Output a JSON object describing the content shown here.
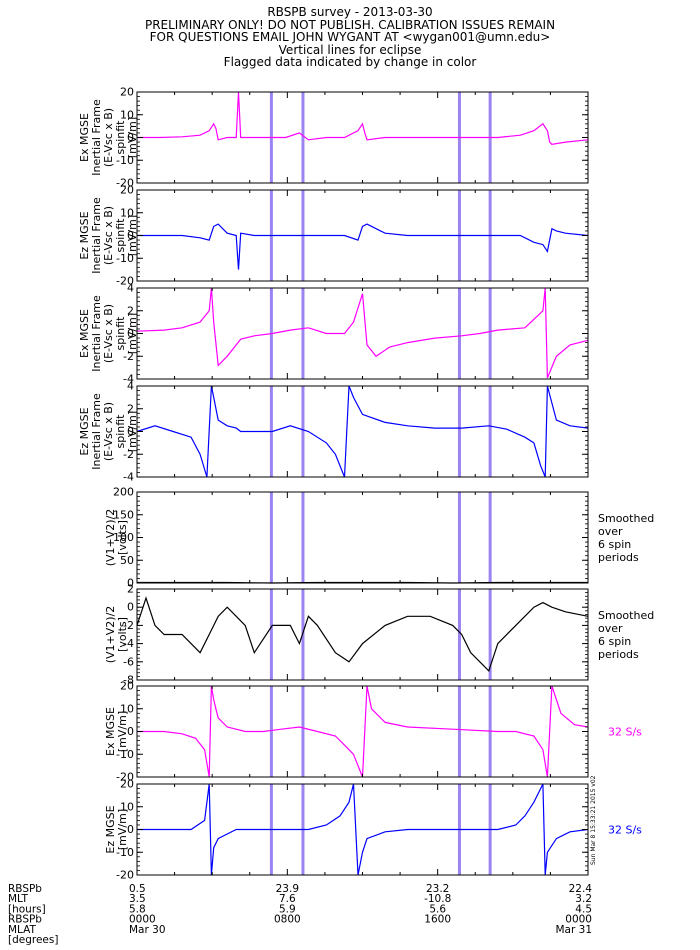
{
  "header": {
    "line1": "RBSPB survey - 2013-03-30",
    "line2": "PRELIMINARY ONLY! DO NOT PUBLISH. CALIBRATION ISSUES REMAIN",
    "line3": "FOR QUESTIONS EMAIL JOHN WYGANT AT <wygan001@umn.edu>",
    "line4": "Vertical lines for eclipse",
    "line5": "Flagged data indicated by change in color"
  },
  "colors": {
    "magenta": "#ff00ff",
    "blue": "#0000ff",
    "black": "#000000",
    "eclipse": "#8a6ff0"
  },
  "eclipse_x_fractions_of_day": [
    0.298,
    0.368,
    0.715,
    0.783
  ],
  "chart_data": [
    {
      "type": "line",
      "ylabel": [
        "Ex MGSE",
        "Inertial Frame",
        "(E-Vsc x B)",
        "spinfit",
        "[mV/m]"
      ],
      "ylim": [
        -20,
        20
      ],
      "yticks": [
        20,
        10,
        0,
        -10,
        -20
      ],
      "color": "magenta",
      "right_label": [],
      "series": [
        {
          "x": [
            0,
            0.05,
            0.1,
            0.14,
            0.16,
            0.17,
            0.175,
            0.18,
            0.2,
            0.22,
            0.225,
            0.23,
            0.26,
            0.3,
            0.33,
            0.36,
            0.38,
            0.42,
            0.46,
            0.49,
            0.5,
            0.505,
            0.51,
            0.55,
            0.6,
            0.65,
            0.7,
            0.75,
            0.8,
            0.85,
            0.88,
            0.9,
            0.91,
            0.915,
            0.92,
            0.95,
            1.0
          ],
          "y": [
            0,
            0,
            0.3,
            1,
            3,
            6,
            4,
            -1,
            0,
            0,
            20,
            0,
            0,
            0,
            0,
            2,
            -1,
            0,
            0,
            3,
            6,
            2,
            -1,
            0,
            0,
            0,
            0,
            0,
            0,
            1,
            3,
            6,
            3,
            -2,
            -3,
            -2,
            -1
          ]
        }
      ]
    },
    {
      "type": "line",
      "ylabel": [
        "Ez MGSE",
        "Inertial Frame",
        "(E-Vsc x B)",
        "spinfit",
        "[mV/m]"
      ],
      "ylim": [
        -20,
        20
      ],
      "yticks": [
        20,
        10,
        0,
        -10,
        -20
      ],
      "color": "blue",
      "right_label": [],
      "series": [
        {
          "x": [
            0,
            0.05,
            0.1,
            0.14,
            0.16,
            0.17,
            0.18,
            0.2,
            0.22,
            0.225,
            0.23,
            0.26,
            0.3,
            0.33,
            0.36,
            0.38,
            0.42,
            0.46,
            0.49,
            0.5,
            0.51,
            0.55,
            0.6,
            0.7,
            0.8,
            0.85,
            0.88,
            0.9,
            0.91,
            0.92,
            0.93,
            0.95,
            1.0
          ],
          "y": [
            0,
            0,
            0,
            -1,
            -2,
            4,
            5,
            1,
            0,
            -15,
            1,
            0,
            0,
            0,
            0,
            0,
            0,
            0,
            -2,
            4,
            5,
            1,
            0,
            0,
            0,
            0,
            -3,
            -4,
            -7,
            3,
            2,
            1,
            0
          ]
        }
      ]
    },
    {
      "type": "line",
      "ylabel": [
        "Ex MGSE",
        "Inertial Frame",
        "(E-Vsc x B)",
        "spinfit",
        "[mV/m]"
      ],
      "ylim": [
        -4,
        4
      ],
      "yticks": [
        4,
        2,
        0,
        -2,
        -4
      ],
      "color": "magenta",
      "right_label": [],
      "series": [
        {
          "x": [
            0,
            0.06,
            0.1,
            0.14,
            0.16,
            0.165,
            0.17,
            0.18,
            0.2,
            0.22,
            0.23,
            0.26,
            0.3,
            0.34,
            0.38,
            0.42,
            0.46,
            0.48,
            0.5,
            0.51,
            0.53,
            0.56,
            0.6,
            0.66,
            0.72,
            0.76,
            0.8,
            0.86,
            0.9,
            0.905,
            0.91,
            0.93,
            0.96,
            1.0
          ],
          "y": [
            0.2,
            0.3,
            0.5,
            1,
            2,
            4,
            1,
            -2.8,
            -2,
            -1,
            -0.5,
            -0.2,
            0,
            0.3,
            0.5,
            0,
            0,
            1,
            3.5,
            -1,
            -2,
            -1.2,
            -0.8,
            -0.4,
            -0.2,
            0,
            0.3,
            0.5,
            2,
            4,
            -3.9,
            -2,
            -1,
            -0.6
          ]
        }
      ]
    },
    {
      "type": "line",
      "ylabel": [
        "Ez MGSE",
        "Inertial Frame",
        "(E-Vsc x B)",
        "spinfit",
        "[mV/m]"
      ],
      "ylim": [
        -4,
        4
      ],
      "yticks": [
        4,
        2,
        0,
        -2,
        -4
      ],
      "color": "blue",
      "right_label": [],
      "series": [
        {
          "x": [
            0,
            0.04,
            0.08,
            0.12,
            0.14,
            0.155,
            0.165,
            0.17,
            0.18,
            0.2,
            0.22,
            0.23,
            0.26,
            0.3,
            0.34,
            0.38,
            0.42,
            0.44,
            0.46,
            0.47,
            0.48,
            0.5,
            0.55,
            0.6,
            0.66,
            0.72,
            0.78,
            0.82,
            0.86,
            0.88,
            0.895,
            0.905,
            0.91,
            0.93,
            0.96,
            1.0
          ],
          "y": [
            0,
            0.5,
            0,
            -0.5,
            -2,
            -4,
            4,
            3,
            1,
            0.5,
            0.3,
            0,
            0,
            0,
            0.5,
            0,
            -1,
            -2,
            -4,
            4,
            3,
            1.5,
            0.8,
            0.5,
            0.3,
            0.3,
            0.5,
            0.2,
            -0.5,
            -1,
            -3,
            -4,
            4,
            1,
            0.5,
            0.3
          ]
        }
      ]
    },
    {
      "type": "line",
      "ylabel": [
        "(V1+V2)/2",
        "[volts]"
      ],
      "ylim": [
        0,
        200
      ],
      "yticks": [
        200,
        150,
        100,
        50,
        0
      ],
      "color": "black",
      "right_label": [
        "Smoothed",
        "over",
        "6 spin",
        "periods"
      ],
      "series": [
        {
          "x": [
            0,
            0.1,
            0.2,
            0.3,
            0.4,
            0.5,
            0.6,
            0.7,
            0.8,
            0.9,
            1.0
          ],
          "y": [
            1,
            1,
            1,
            0,
            1,
            1,
            1,
            0,
            1,
            1,
            1
          ]
        }
      ]
    },
    {
      "type": "line",
      "ylabel": [
        "(V1+V2)/2",
        "[volts]"
      ],
      "ylim": [
        -8,
        2
      ],
      "yticks": [
        2,
        0,
        -2,
        -4,
        -6,
        -8
      ],
      "color": "black",
      "right_label": [
        "Smoothed",
        "over",
        "6 spin",
        "periods"
      ],
      "series": [
        {
          "x": [
            0,
            0.02,
            0.04,
            0.06,
            0.1,
            0.14,
            0.16,
            0.18,
            0.2,
            0.22,
            0.24,
            0.26,
            0.3,
            0.34,
            0.36,
            0.38,
            0.4,
            0.44,
            0.47,
            0.5,
            0.55,
            0.6,
            0.65,
            0.7,
            0.72,
            0.74,
            0.76,
            0.78,
            0.8,
            0.84,
            0.88,
            0.9,
            0.92,
            0.95,
            1.0
          ],
          "y": [
            -2,
            1,
            -2,
            -3,
            -3,
            -5,
            -3,
            -1,
            0,
            -1,
            -2,
            -5,
            -2,
            -2,
            -4,
            -1,
            -2,
            -5,
            -6,
            -4,
            -2,
            -1,
            -1,
            -2,
            -3,
            -5,
            -6,
            -7,
            -4,
            -2,
            0,
            0.5,
            0,
            -0.5,
            -1
          ]
        }
      ]
    },
    {
      "type": "line",
      "ylabel": [
        "Ex MGSE",
        "[mV/m]"
      ],
      "ylim": [
        -20,
        20
      ],
      "yticks": [
        20,
        10,
        0,
        -10,
        -20
      ],
      "color": "magenta",
      "right_label": [
        "32 S/s"
      ],
      "series": [
        {
          "x": [
            0,
            0.06,
            0.1,
            0.13,
            0.15,
            0.16,
            0.165,
            0.17,
            0.175,
            0.18,
            0.2,
            0.22,
            0.24,
            0.28,
            0.32,
            0.36,
            0.4,
            0.44,
            0.46,
            0.48,
            0.5,
            0.51,
            0.52,
            0.55,
            0.6,
            0.7,
            0.8,
            0.84,
            0.88,
            0.9,
            0.91,
            0.92,
            0.94,
            0.97,
            1.0
          ],
          "y": [
            0,
            0,
            -1,
            -3,
            -8,
            -20,
            20,
            14,
            10,
            6,
            2,
            1,
            0,
            0,
            1,
            2,
            0,
            -2,
            -6,
            -10,
            -20,
            20,
            10,
            4,
            2,
            1,
            0,
            0,
            -2,
            -8,
            -20,
            20,
            8,
            3,
            2
          ]
        }
      ]
    },
    {
      "type": "line",
      "ylabel": [
        "Ez MGSE",
        "[mV/m]"
      ],
      "ylim": [
        -20,
        20
      ],
      "yticks": [
        20,
        10,
        0,
        -10,
        -20
      ],
      "color": "blue",
      "right_label": [
        "32 S/s"
      ],
      "series": [
        {
          "x": [
            0,
            0.04,
            0.08,
            0.12,
            0.15,
            0.16,
            0.165,
            0.17,
            0.18,
            0.2,
            0.22,
            0.25,
            0.3,
            0.34,
            0.38,
            0.42,
            0.45,
            0.47,
            0.48,
            0.49,
            0.5,
            0.51,
            0.55,
            0.6,
            0.7,
            0.8,
            0.84,
            0.86,
            0.88,
            0.9,
            0.905,
            0.91,
            0.93,
            0.96,
            1.0
          ],
          "y": [
            0,
            0,
            0,
            0,
            4,
            20,
            -20,
            -8,
            -4,
            -2,
            0,
            0,
            0,
            0,
            0,
            2,
            6,
            12,
            20,
            -20,
            -10,
            -4,
            -1,
            0,
            0,
            0,
            2,
            6,
            12,
            20,
            -20,
            -10,
            -4,
            -1,
            0
          ]
        }
      ]
    }
  ],
  "bottom_axis": {
    "row_labels": [
      "RBSPb",
      "MLT",
      "[hours]",
      "RBSPb",
      "MLAT",
      "[degrees]"
    ],
    "columns": [
      {
        "rows": [
          "0.5",
          "3.5",
          "5.8",
          "0000",
          "Mar 30"
        ],
        "align": "left"
      },
      {
        "rows": [
          "23.9",
          "7.6",
          "5.9",
          "0800"
        ],
        "align": "center"
      },
      {
        "rows": [
          "23.2",
          "-10.8",
          "5.6",
          "1600"
        ],
        "align": "center"
      },
      {
        "rows": [
          "22.4",
          "3.2",
          "4.5",
          "0000",
          "Mar 31"
        ],
        "align": "right"
      }
    ]
  },
  "timestamp": "Sun Mar 8 15:33:21 2015 v02"
}
